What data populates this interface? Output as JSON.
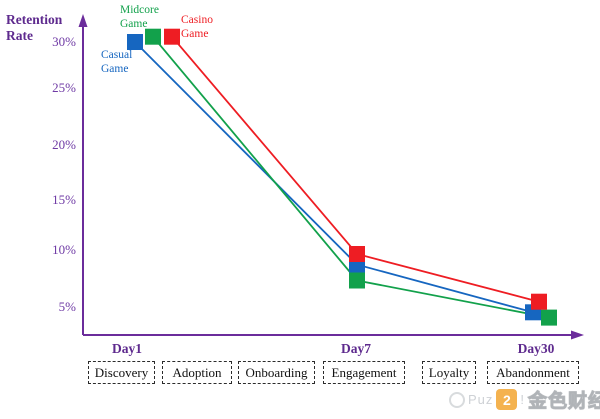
{
  "chart_data": {
    "type": "line",
    "title": "Retention Rate",
    "ylabel": "Retention\nRate",
    "xlabel": "",
    "x_categories": [
      "Day1",
      "Day7",
      "Day30"
    ],
    "y_ticks": [
      "30%",
      "25%",
      "20%",
      "15%",
      "10%",
      "5%"
    ],
    "y_tick_values": [
      30,
      25,
      20,
      15,
      10,
      5
    ],
    "y_range_shown": [
      5,
      30
    ],
    "grid": false,
    "marker": "square",
    "axis_color": "#6B2C9B",
    "legend_position": "labels-near-day1-points",
    "series": [
      {
        "name": "Casual Game",
        "label": "Casual\nGame",
        "color": "#1666C0",
        "values": [
          30,
          9,
          4.5
        ]
      },
      {
        "name": "Midcore Game",
        "label": "Midcore\nGame",
        "color": "#12A14B",
        "values": [
          30.5,
          7.5,
          4
        ]
      },
      {
        "name": "Casino Game",
        "label": "Casino\nGame",
        "color": "#EE1D23",
        "values": [
          30.5,
          10,
          5.5
        ]
      }
    ]
  },
  "stages": {
    "items": [
      "Discovery",
      "Adoption",
      "Onboarding",
      "Engagement",
      "Loyalty",
      "Abandonment"
    ]
  },
  "watermark": {
    "prefix": "Puz",
    "suffix": "!",
    "brand": "金色财经",
    "logo_glyph": "2",
    "logo_color": "#F2A024"
  }
}
